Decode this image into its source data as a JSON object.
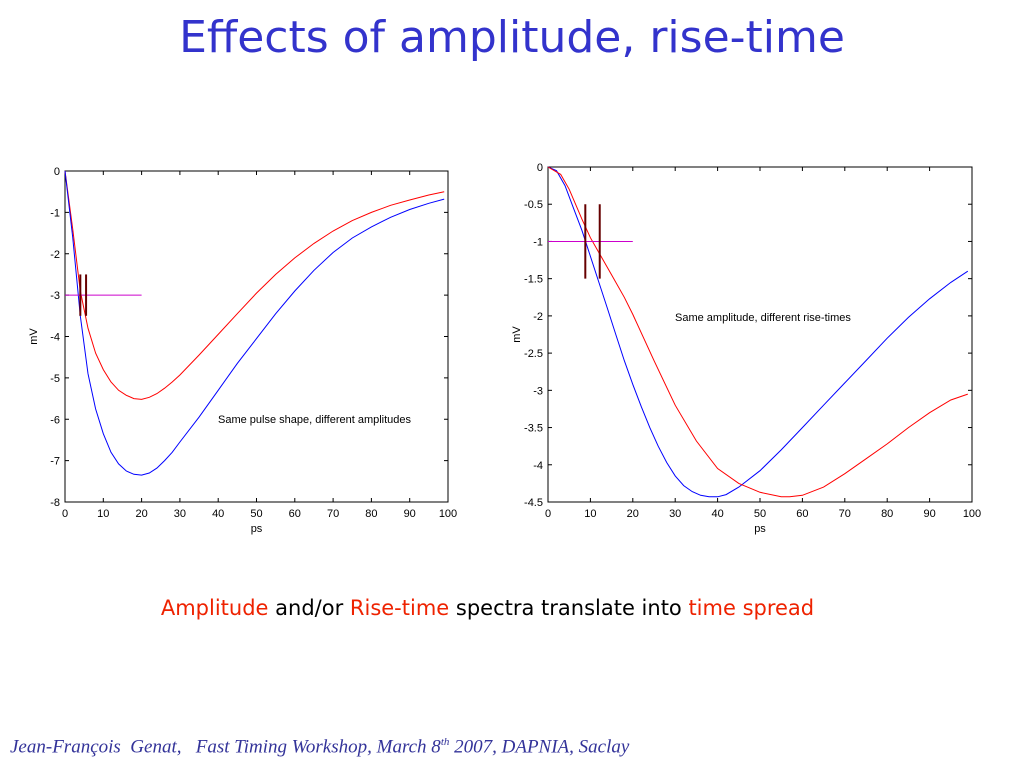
{
  "slide": {
    "title": "Effects of amplitude, rise-time",
    "caption": {
      "part1": "Amplitude",
      "part2": " and/or ",
      "part3": "Rise-time",
      "part4": " spectra translate into ",
      "part5": "time spread"
    },
    "footer": {
      "main": "Jean-François  Genat,   Fast Timing Workshop, March 8",
      "sup": "th",
      "tail": " 2007, DAPNIA, Saclay"
    },
    "colors": {
      "title": "#3333cc",
      "highlight": "#ee2200",
      "footer": "#333399",
      "series_red": "#ff0000",
      "series_blue": "#0000ff",
      "threshold_line": "#cc00cc",
      "marker": "#660000"
    }
  },
  "chart_data": [
    {
      "type": "line",
      "xlabel": "ps",
      "ylabel": "mV",
      "xlim": [
        0,
        100
      ],
      "ylim": [
        -8,
        0
      ],
      "xticks": [
        0,
        10,
        20,
        30,
        40,
        50,
        60,
        70,
        80,
        90,
        100
      ],
      "yticks": [
        0,
        -1,
        -2,
        -3,
        -4,
        -5,
        -6,
        -7,
        -8
      ],
      "annotation": "Same pulse shape, different amplitudes",
      "threshold": {
        "y": -3,
        "x": [
          0,
          20
        ]
      },
      "markers": [
        {
          "x": 4.0,
          "y": [
            -2.5,
            -3.5
          ]
        },
        {
          "x": 5.5,
          "y": [
            -2.5,
            -3.5
          ]
        }
      ],
      "series": [
        {
          "color": "#ff0000",
          "x": [
            0,
            2,
            4,
            6,
            8,
            10,
            12,
            14,
            16,
            18,
            20,
            22,
            24,
            26,
            28,
            30,
            35,
            40,
            45,
            50,
            55,
            60,
            65,
            70,
            75,
            80,
            85,
            90,
            95,
            99
          ],
          "values": [
            0,
            -1.4,
            -2.9,
            -3.8,
            -4.4,
            -4.8,
            -5.1,
            -5.3,
            -5.42,
            -5.5,
            -5.52,
            -5.47,
            -5.38,
            -5.25,
            -5.1,
            -4.93,
            -4.45,
            -3.95,
            -3.45,
            -2.95,
            -2.5,
            -2.1,
            -1.75,
            -1.45,
            -1.2,
            -1.0,
            -0.83,
            -0.7,
            -0.58,
            -0.5
          ]
        },
        {
          "color": "#0000ff",
          "x": [
            0,
            2,
            4,
            6,
            8,
            10,
            12,
            14,
            16,
            18,
            20,
            22,
            24,
            26,
            28,
            30,
            35,
            40,
            45,
            50,
            55,
            60,
            65,
            70,
            75,
            80,
            85,
            90,
            95,
            99
          ],
          "values": [
            0,
            -1.6,
            -3.5,
            -4.9,
            -5.75,
            -6.35,
            -6.8,
            -7.08,
            -7.25,
            -7.33,
            -7.35,
            -7.3,
            -7.18,
            -7.0,
            -6.8,
            -6.55,
            -5.95,
            -5.3,
            -4.65,
            -4.05,
            -3.45,
            -2.9,
            -2.4,
            -1.97,
            -1.62,
            -1.35,
            -1.12,
            -0.93,
            -0.78,
            -0.68
          ]
        }
      ]
    },
    {
      "type": "line",
      "xlabel": "ps",
      "ylabel": "mV",
      "xlim": [
        0,
        100
      ],
      "ylim": [
        -4.5,
        0
      ],
      "xticks": [
        0,
        10,
        20,
        30,
        40,
        50,
        60,
        70,
        80,
        90,
        100
      ],
      "yticks": [
        0,
        -0.5,
        -1,
        -1.5,
        -2,
        -2.5,
        -3,
        -3.5,
        -4,
        -4.5
      ],
      "annotation": "Same amplitude, different rise-times",
      "threshold": {
        "y": -1,
        "x": [
          0,
          20
        ]
      },
      "markers": [
        {
          "x": 8.8,
          "y": [
            -0.5,
            -1.5
          ]
        },
        {
          "x": 12.2,
          "y": [
            -0.5,
            -1.5
          ]
        }
      ],
      "series": [
        {
          "color": "#0000ff",
          "x": [
            0,
            2,
            4,
            6,
            8,
            10,
            12,
            14,
            16,
            18,
            20,
            22,
            24,
            26,
            28,
            30,
            32,
            34,
            36,
            38,
            40,
            42,
            45,
            50,
            55,
            60,
            65,
            70,
            75,
            80,
            85,
            90,
            95,
            99
          ],
          "values": [
            0,
            -0.05,
            -0.25,
            -0.55,
            -0.85,
            -1.2,
            -1.55,
            -1.9,
            -2.25,
            -2.6,
            -2.92,
            -3.22,
            -3.5,
            -3.75,
            -3.97,
            -4.15,
            -4.28,
            -4.36,
            -4.41,
            -4.43,
            -4.43,
            -4.4,
            -4.3,
            -4.08,
            -3.8,
            -3.5,
            -3.2,
            -2.9,
            -2.6,
            -2.3,
            -2.02,
            -1.77,
            -1.55,
            -1.4
          ]
        },
        {
          "color": "#ff0000",
          "x": [
            0,
            3,
            5,
            8,
            10,
            12,
            15,
            18,
            20,
            25,
            30,
            35,
            40,
            45,
            50,
            55,
            57,
            60,
            65,
            70,
            75,
            80,
            85,
            90,
            95,
            99
          ],
          "values": [
            0,
            -0.1,
            -0.3,
            -0.7,
            -0.95,
            -1.15,
            -1.45,
            -1.75,
            -1.98,
            -2.6,
            -3.2,
            -3.68,
            -4.05,
            -4.25,
            -4.37,
            -4.43,
            -4.43,
            -4.41,
            -4.3,
            -4.12,
            -3.92,
            -3.72,
            -3.5,
            -3.3,
            -3.13,
            -3.05
          ]
        }
      ]
    }
  ]
}
